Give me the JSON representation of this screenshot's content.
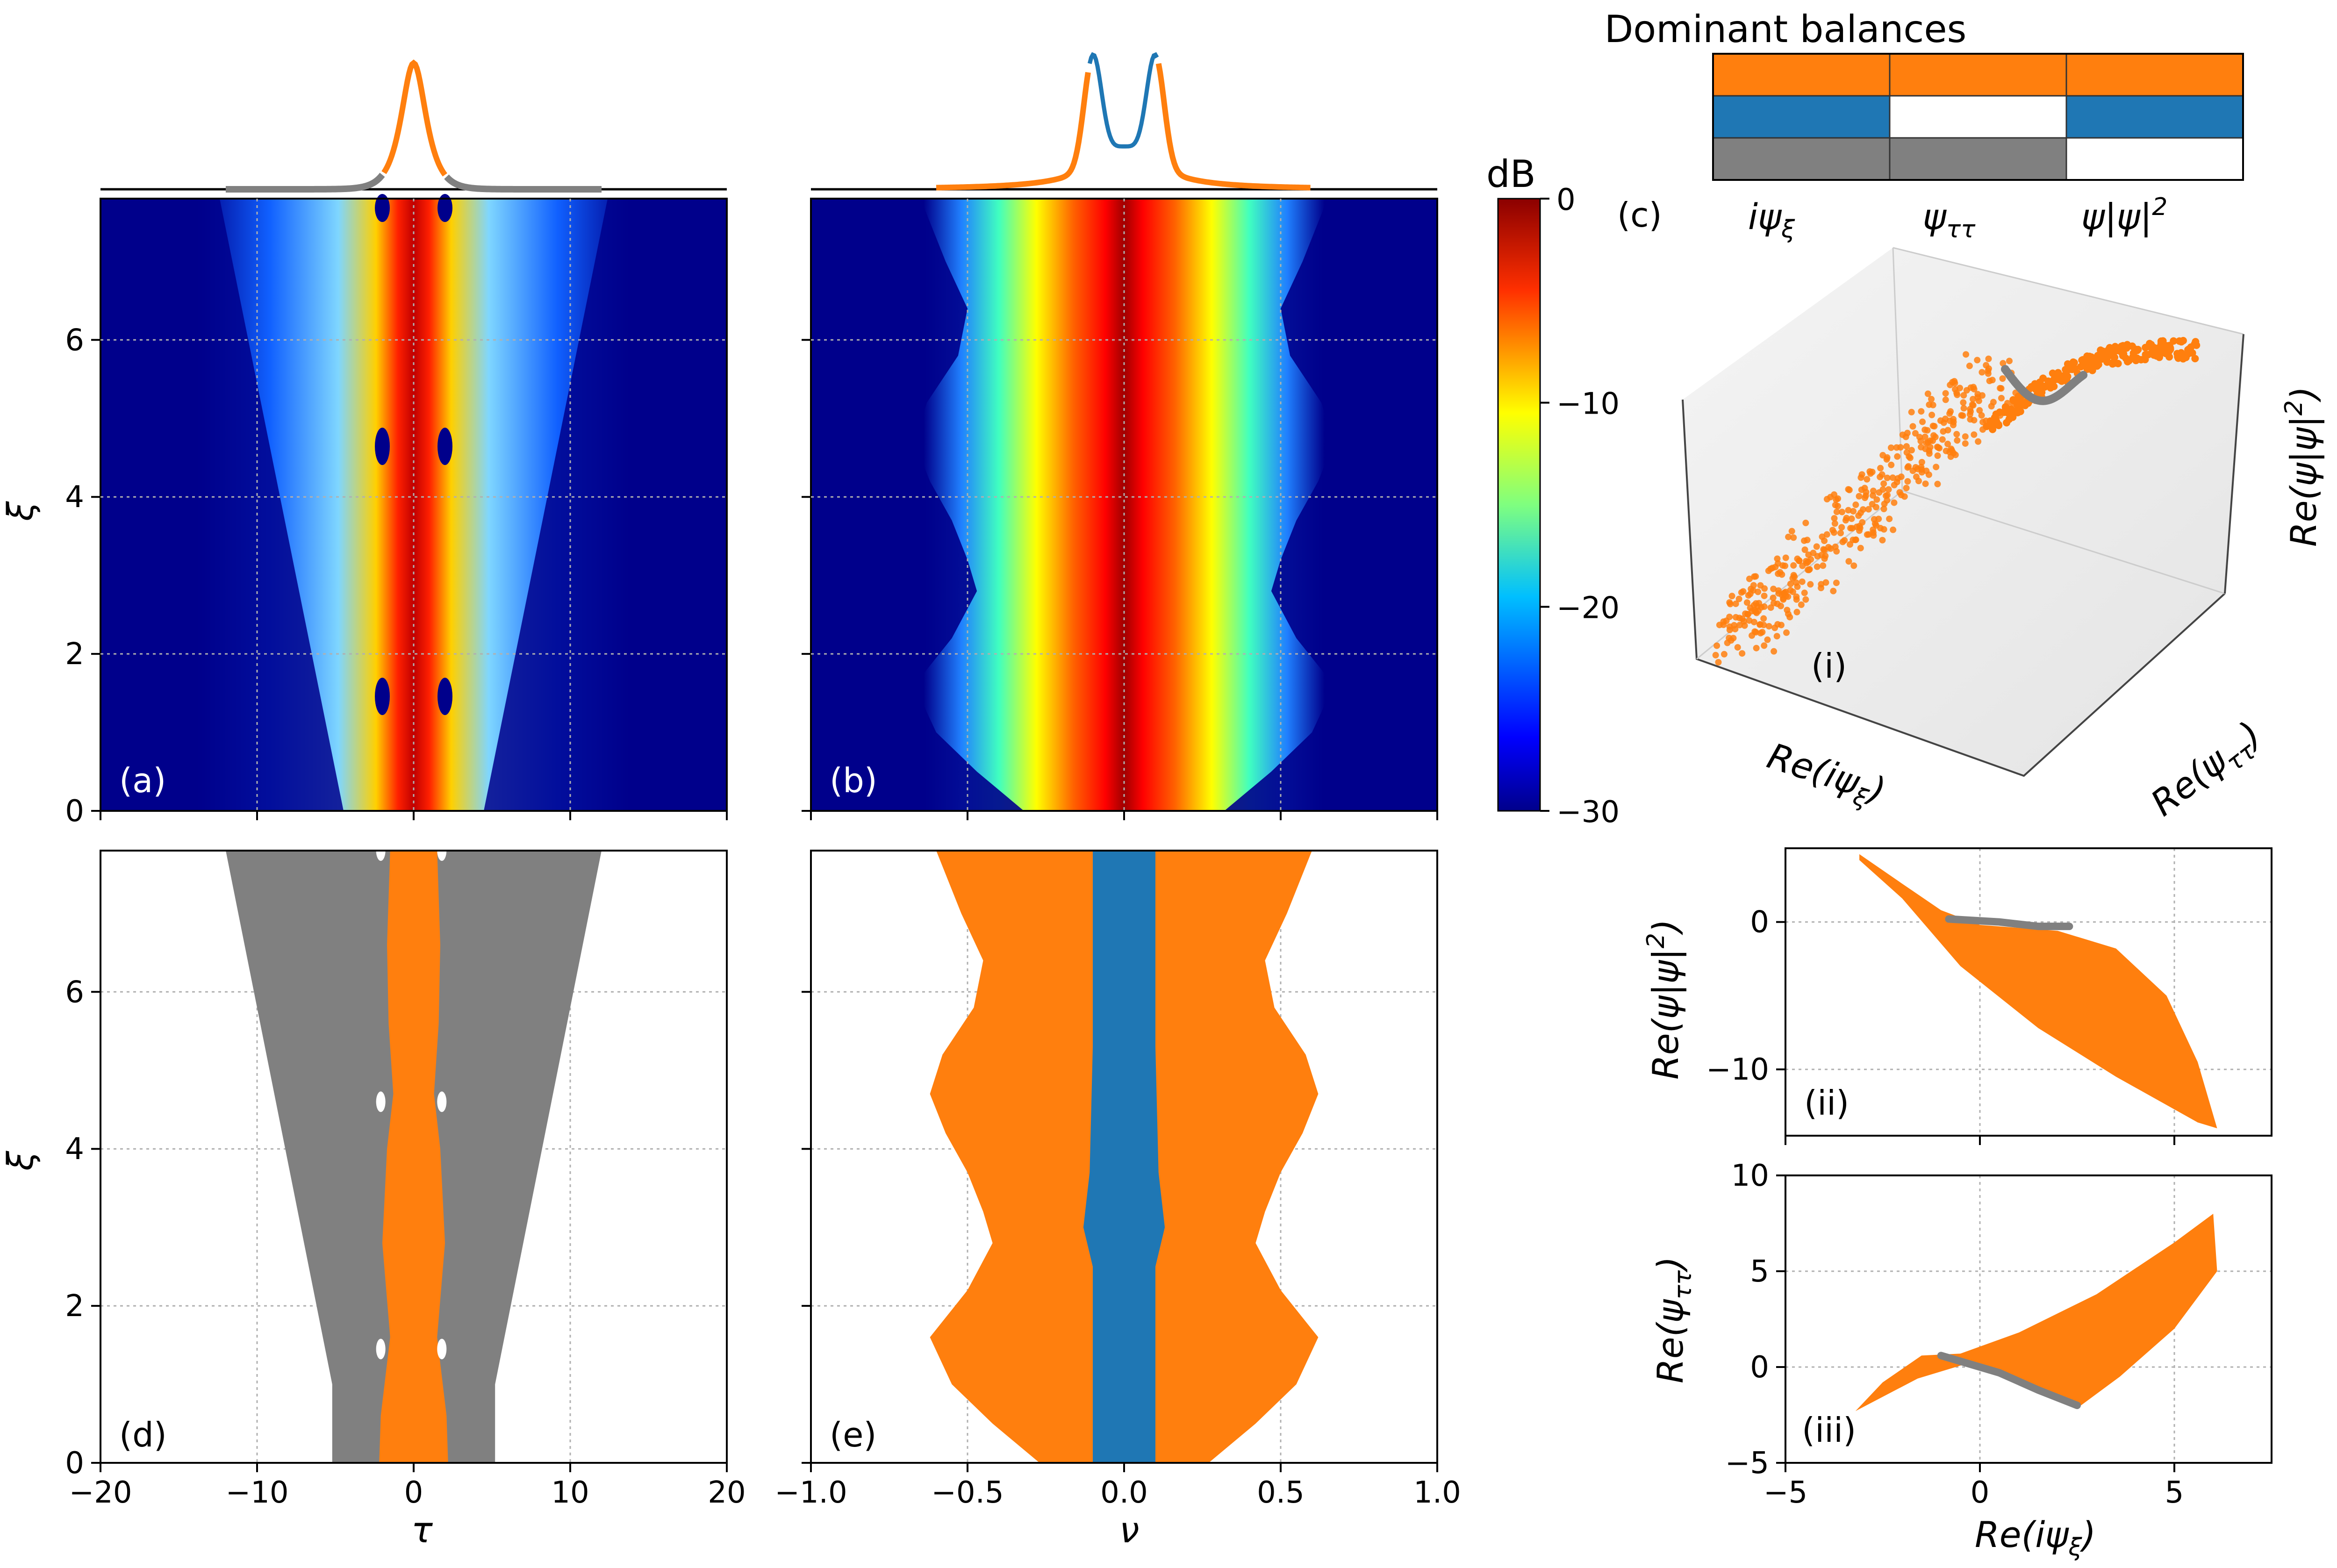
{
  "colors": {
    "orange": "#ff7f0e",
    "blue": "#1f77b4",
    "gray": "#808080",
    "jet_dark": "#00008b",
    "white": "#ffffff"
  },
  "chart_data": [
    {
      "id": "a",
      "type": "heatmap",
      "panel_label": "(a)",
      "xlabel": "τ",
      "ylabel": "ξ",
      "xlim": [
        -20,
        20
      ],
      "ylim": [
        0,
        7.8
      ],
      "xticks": [
        "−20",
        "−10",
        "0",
        "10",
        "20"
      ],
      "yticks": [
        "0",
        "2",
        "4",
        "6"
      ],
      "colormap": "jet",
      "description_series": [
        {
          "name": "temporal intensity (dB)",
          "core_halfwidth_tau": 1.5,
          "wing_halfwidth_tau_at_xi0": 4.5,
          "wing_halfwidth_tau_at_xi7.8": 11
        }
      ],
      "top_profile": {
        "center_tau": 0,
        "peak_width_tau": 1.2
      }
    },
    {
      "id": "b",
      "type": "heatmap",
      "panel_label": "(b)",
      "xlabel": "ν",
      "ylabel": "",
      "xlim": [
        -1.0,
        1.0
      ],
      "ylim": [
        0,
        7.8
      ],
      "xticks": [
        "−1.0",
        "−0.5",
        "0.0",
        "0.5",
        "1.0"
      ],
      "colormap": "jet",
      "top_profile": {
        "side_peaks_nu": [
          -0.1,
          0.1
        ]
      }
    },
    {
      "id": "colorbar",
      "type": "heatmap",
      "label": "dB",
      "range": [
        -30,
        0
      ],
      "ticks": [
        "0",
        "−10",
        "−20",
        "−30"
      ]
    },
    {
      "id": "c",
      "type": "table",
      "title": "Dominant balances",
      "panel_label": "(c)",
      "columns": [
        "iψ",
        "ψ",
        "ψ|ψ|"
      ],
      "column_subscripts": [
        "ξ",
        "ττ",
        ""
      ],
      "column_superscripts": [
        "",
        "",
        "2"
      ],
      "rows": [
        [
          "orange",
          "orange",
          "orange"
        ],
        [
          "blue",
          "white",
          "blue"
        ],
        [
          "gray",
          "gray",
          "white"
        ]
      ]
    },
    {
      "id": "c-i",
      "type": "scatter",
      "panel_label": "(i)",
      "xlabel": "Re(iψξ)",
      "ylabel": "Re(ψττ)",
      "zlabel": "Re(ψ|ψ|2)",
      "series": [
        {
          "name": "orange cluster",
          "color": "orange"
        },
        {
          "name": "gray cluster",
          "color": "gray"
        }
      ]
    },
    {
      "id": "d",
      "type": "area",
      "panel_label": "(d)",
      "xlabel": "τ",
      "ylabel": "ξ",
      "xlim": [
        -20,
        20
      ],
      "ylim": [
        0,
        7.8
      ],
      "xticks": [
        "−20",
        "−10",
        "0",
        "10",
        "20"
      ],
      "yticks": [
        "0",
        "2",
        "4",
        "6"
      ],
      "regions": [
        {
          "color": "gray",
          "halfwidth_tau": [
            [
              0,
              5.2
            ],
            [
              1.0,
              5.2
            ],
            [
              1.3,
              5.5
            ],
            [
              7.8,
              12
            ]
          ]
        },
        {
          "color": "orange",
          "halfwidth_tau": [
            [
              0,
              2.2
            ],
            [
              0.6,
              2.1
            ],
            [
              1.6,
              1.5
            ],
            [
              2.8,
              2.0
            ],
            [
              4.0,
              1.7
            ],
            [
              4.7,
              1.3
            ],
            [
              5.6,
              1.6
            ],
            [
              6.6,
              1.7
            ],
            [
              7.8,
              1.5
            ]
          ]
        }
      ],
      "holes": [
        [
          -2.1,
          1.45
        ],
        [
          1.8,
          1.45
        ],
        [
          -2.1,
          4.6
        ],
        [
          1.8,
          4.6
        ],
        [
          -2.1,
          7.8
        ],
        [
          1.8,
          7.8
        ]
      ]
    },
    {
      "id": "e",
      "type": "area",
      "panel_label": "(e)",
      "xlabel": "ν",
      "ylabel": "",
      "xlim": [
        -1.0,
        1.0
      ],
      "ylim": [
        0,
        7.8
      ],
      "xticks": [
        "−1.0",
        "−0.5",
        "0.0",
        "0.5",
        "1.0"
      ],
      "yticks": [
        "0",
        "2",
        "4",
        "6"
      ],
      "regions": [
        {
          "color": "orange",
          "halfwidth_nu": [
            [
              0,
              0.27
            ],
            [
              0.5,
              0.42
            ],
            [
              1.0,
              0.55
            ],
            [
              1.6,
              0.62
            ],
            [
              2.2,
              0.5
            ],
            [
              2.8,
              0.42
            ],
            [
              3.2,
              0.45
            ],
            [
              3.7,
              0.5
            ],
            [
              4.2,
              0.57
            ],
            [
              4.7,
              0.62
            ],
            [
              5.2,
              0.58
            ],
            [
              5.8,
              0.48
            ],
            [
              6.4,
              0.45
            ],
            [
              7.0,
              0.52
            ],
            [
              7.8,
              0.6
            ]
          ]
        },
        {
          "color": "blue",
          "halfwidth_nu": [
            [
              0,
              0.1
            ],
            [
              2.5,
              0.1
            ],
            [
              3.0,
              0.13
            ],
            [
              3.7,
              0.11
            ],
            [
              5.3,
              0.1
            ],
            [
              5.6,
              0.1
            ],
            [
              7.8,
              0.1
            ]
          ]
        }
      ]
    },
    {
      "id": "c-ii",
      "type": "scatter",
      "panel_label": "(ii)",
      "xlabel": "",
      "ylabel": "Re(ψ|ψ|2)",
      "xlim": [
        -5,
        7.5
      ],
      "ylim": [
        -14.5,
        5
      ],
      "yticks": [
        "0",
        "−10"
      ],
      "series": [
        {
          "name": "orange",
          "points": [
            [
              -3.0,
              4.5
            ],
            [
              -1.2,
              1.0
            ],
            [
              0.5,
              -0.5
            ],
            [
              2.5,
              -1.5
            ],
            [
              4.5,
              -6.0
            ],
            [
              6.0,
              -14.0
            ],
            [
              -1.0,
              0
            ],
            [
              3.0,
              -9.0
            ]
          ]
        },
        {
          "name": "gray",
          "points": [
            [
              -0.8,
              0.2
            ],
            [
              0.5,
              0.0
            ],
            [
              1.5,
              -0.3
            ],
            [
              2.3,
              -0.3
            ]
          ]
        }
      ]
    },
    {
      "id": "c-iii",
      "type": "scatter",
      "panel_label": "(iii)",
      "xlabel": "Re(iψξ)",
      "ylabel": "Re(ψττ)",
      "xlim": [
        -5,
        7.5
      ],
      "ylim": [
        -5,
        10
      ],
      "xticks": [
        "−5",
        "0",
        "5"
      ],
      "yticks": [
        "−5",
        "0",
        "5",
        "10"
      ],
      "series": [
        {
          "name": "orange",
          "points": [
            [
              -3.2,
              -2.3
            ],
            [
              -1.5,
              0.5
            ],
            [
              0,
              0.8
            ],
            [
              3.0,
              3.5
            ],
            [
              6.0,
              8.0
            ],
            [
              6.0,
              4.0
            ],
            [
              2.5,
              -2.0
            ]
          ]
        },
        {
          "name": "gray",
          "points": [
            [
              -1.0,
              0.6
            ],
            [
              0.5,
              -0.3
            ],
            [
              1.5,
              -1.2
            ],
            [
              2.5,
              -2.0
            ]
          ]
        }
      ]
    }
  ],
  "labels": {
    "panel_a": "(a)",
    "panel_b": "(b)",
    "panel_c": "(c)",
    "panel_d": "(d)",
    "panel_e": "(e)",
    "panel_i": "(i)",
    "panel_ii": "(ii)",
    "panel_iii": "(iii)",
    "dB": "dB",
    "table_title": "Dominant balances",
    "xi": "ξ",
    "tau": "τ",
    "nu": "ν"
  }
}
